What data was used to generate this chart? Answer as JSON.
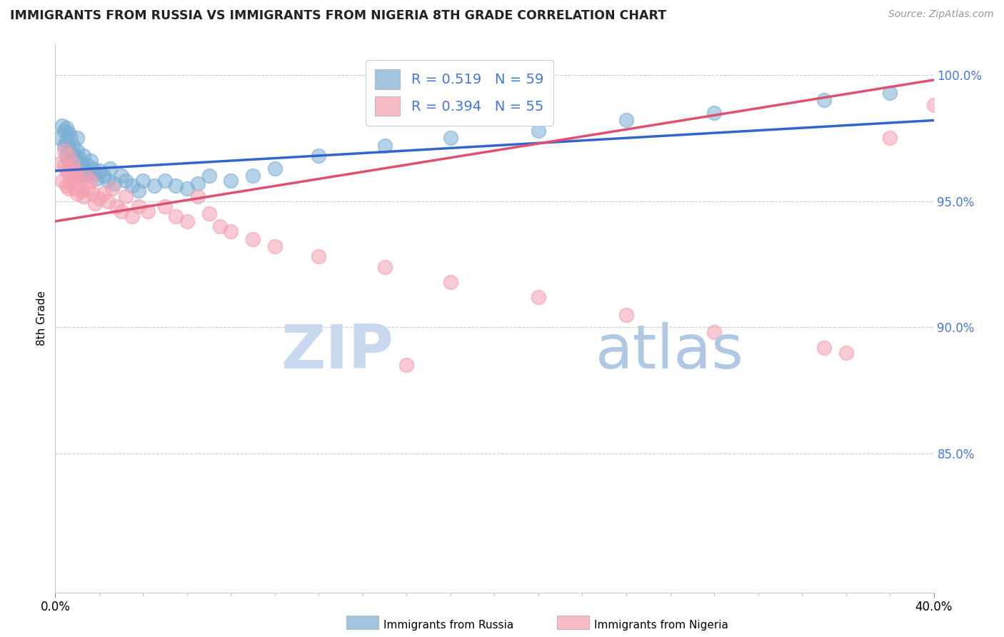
{
  "title": "IMMIGRANTS FROM RUSSIA VS IMMIGRANTS FROM NIGERIA 8TH GRADE CORRELATION CHART",
  "source": "Source: ZipAtlas.com",
  "ylabel": "8th Grade",
  "russia_color": "#7bafd4",
  "nigeria_color": "#f4a0b0",
  "russia_edge": "#5a9abf",
  "nigeria_edge": "#e080a0",
  "trend_russia": "#3366cc",
  "trend_nigeria": "#e05070",
  "russia_label": "Immigrants from Russia",
  "nigeria_label": "Immigrants from Nigeria",
  "r_russia": 0.519,
  "n_russia": 59,
  "r_nigeria": 0.394,
  "n_nigeria": 55,
  "legend_text_color": "#4477dd",
  "xmin": 0.0,
  "xmax": 0.4,
  "ymin": 0.795,
  "ymax": 1.012,
  "ytick_positions": [
    1.0,
    0.95,
    0.9,
    0.85
  ],
  "ytick_labels": [
    "100.0%",
    "95.0%",
    "90.0%",
    "85.0%"
  ],
  "watermark_zip_color": "#c8d8ee",
  "watermark_atlas_color": "#b0c8e4",
  "russia_x": [
    0.002,
    0.003,
    0.004,
    0.004,
    0.005,
    0.005,
    0.005,
    0.006,
    0.006,
    0.006,
    0.007,
    0.007,
    0.007,
    0.008,
    0.008,
    0.009,
    0.009,
    0.01,
    0.01,
    0.01,
    0.011,
    0.011,
    0.012,
    0.012,
    0.013,
    0.013,
    0.014,
    0.015,
    0.016,
    0.017,
    0.018,
    0.019,
    0.02,
    0.022,
    0.024,
    0.025,
    0.027,
    0.03,
    0.032,
    0.035,
    0.038,
    0.04,
    0.045,
    0.05,
    0.055,
    0.06,
    0.065,
    0.07,
    0.08,
    0.09,
    0.1,
    0.12,
    0.15,
    0.18,
    0.22,
    0.26,
    0.3,
    0.35,
    0.38
  ],
  "russia_y": [
    0.975,
    0.98,
    0.972,
    0.978,
    0.968,
    0.974,
    0.979,
    0.966,
    0.971,
    0.977,
    0.964,
    0.969,
    0.975,
    0.967,
    0.972,
    0.963,
    0.968,
    0.965,
    0.97,
    0.975,
    0.962,
    0.967,
    0.96,
    0.965,
    0.963,
    0.968,
    0.961,
    0.964,
    0.966,
    0.963,
    0.961,
    0.959,
    0.962,
    0.96,
    0.958,
    0.963,
    0.957,
    0.96,
    0.958,
    0.956,
    0.954,
    0.958,
    0.956,
    0.958,
    0.956,
    0.955,
    0.957,
    0.96,
    0.958,
    0.96,
    0.963,
    0.968,
    0.972,
    0.975,
    0.978,
    0.982,
    0.985,
    0.99,
    0.993
  ],
  "nigeria_x": [
    0.002,
    0.003,
    0.004,
    0.004,
    0.005,
    0.005,
    0.006,
    0.006,
    0.006,
    0.007,
    0.007,
    0.008,
    0.008,
    0.009,
    0.009,
    0.01,
    0.01,
    0.011,
    0.012,
    0.013,
    0.014,
    0.015,
    0.016,
    0.017,
    0.018,
    0.02,
    0.022,
    0.024,
    0.026,
    0.028,
    0.03,
    0.032,
    0.035,
    0.038,
    0.042,
    0.05,
    0.055,
    0.06,
    0.065,
    0.07,
    0.075,
    0.08,
    0.09,
    0.1,
    0.12,
    0.15,
    0.18,
    0.22,
    0.26,
    0.3,
    0.35,
    0.36,
    0.38,
    0.4,
    0.16
  ],
  "nigeria_y": [
    0.965,
    0.958,
    0.97,
    0.964,
    0.962,
    0.956,
    0.968,
    0.961,
    0.955,
    0.963,
    0.957,
    0.965,
    0.96,
    0.962,
    0.955,
    0.96,
    0.953,
    0.957,
    0.954,
    0.952,
    0.96,
    0.955,
    0.958,
    0.953,
    0.949,
    0.951,
    0.953,
    0.95,
    0.955,
    0.948,
    0.946,
    0.952,
    0.944,
    0.948,
    0.946,
    0.948,
    0.944,
    0.942,
    0.952,
    0.945,
    0.94,
    0.938,
    0.935,
    0.932,
    0.928,
    0.924,
    0.918,
    0.912,
    0.905,
    0.898,
    0.892,
    0.89,
    0.975,
    0.988,
    0.885
  ],
  "russia_trend_x": [
    0.0,
    0.4
  ],
  "russia_trend_y": [
    0.962,
    0.982
  ],
  "nigeria_trend_x": [
    0.0,
    0.4
  ],
  "nigeria_trend_y": [
    0.942,
    0.998
  ]
}
